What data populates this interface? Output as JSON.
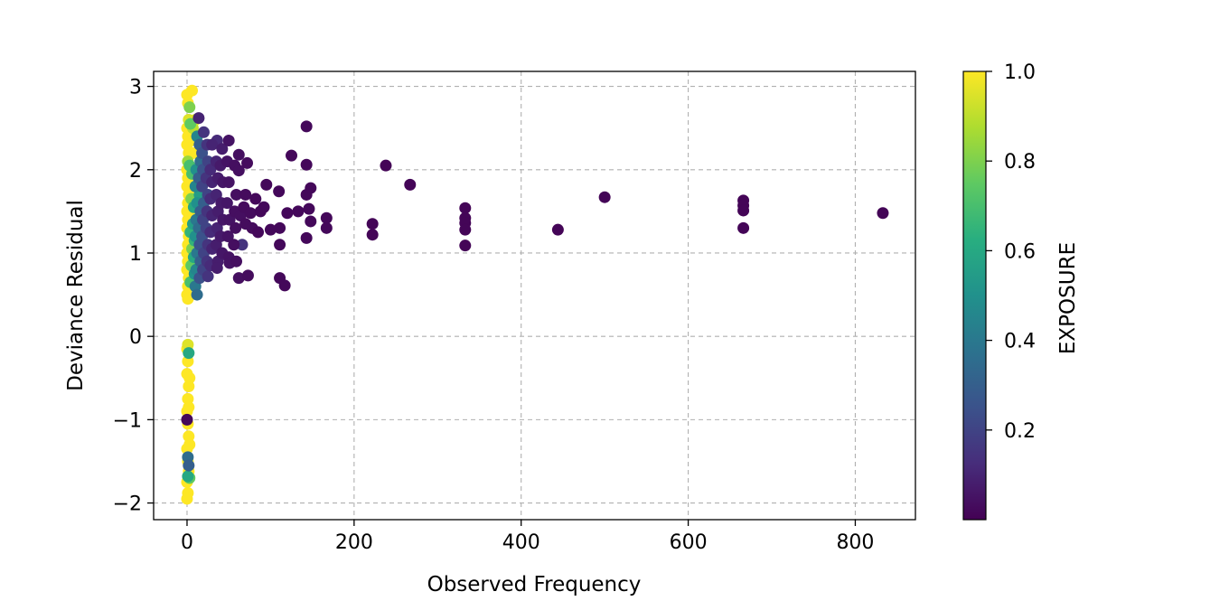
{
  "chart_data": {
    "type": "scatter",
    "xlabel": "Observed Frequency",
    "ylabel": "Deviance Residual",
    "colorbar_label": "EXPOSURE",
    "colormap": "viridis",
    "xlim": [
      -40,
      872
    ],
    "ylim": [
      -2.2,
      3.18
    ],
    "xticks": [
      0,
      200,
      400,
      600,
      800
    ],
    "yticks": [
      -2,
      -1,
      0,
      1,
      2,
      3
    ],
    "ytick_labels": [
      "−2",
      "−1",
      "0",
      "1",
      "2",
      "3"
    ],
    "colorbar_ticks": [
      0.2,
      0.4,
      0.6,
      0.8,
      1.0
    ],
    "colorbar_tick_labels": [
      "0.2",
      "0.4",
      "0.6",
      "0.8",
      "1.0"
    ],
    "colorbar_range": [
      0.0,
      1.0
    ],
    "grid": true,
    "points": [
      {
        "x": 0,
        "y": 2.9,
        "c": 1.0
      },
      {
        "x": 1,
        "y": 2.8,
        "c": 1.0
      },
      {
        "x": 2,
        "y": 2.6,
        "c": 0.95
      },
      {
        "x": 0,
        "y": 2.5,
        "c": 1.0
      },
      {
        "x": 1,
        "y": 2.4,
        "c": 1.0
      },
      {
        "x": 0,
        "y": 2.3,
        "c": 1.0
      },
      {
        "x": 2,
        "y": 2.2,
        "c": 1.0
      },
      {
        "x": 1,
        "y": 2.1,
        "c": 0.85
      },
      {
        "x": 0,
        "y": 2.0,
        "c": 1.0
      },
      {
        "x": 1,
        "y": 1.9,
        "c": 1.0
      },
      {
        "x": 0,
        "y": 1.8,
        "c": 1.0
      },
      {
        "x": 2,
        "y": 1.7,
        "c": 1.0
      },
      {
        "x": 1,
        "y": 1.6,
        "c": 1.0
      },
      {
        "x": 0,
        "y": 1.5,
        "c": 1.0
      },
      {
        "x": 1,
        "y": 1.4,
        "c": 1.0
      },
      {
        "x": 0,
        "y": 1.3,
        "c": 1.0
      },
      {
        "x": 2,
        "y": 1.2,
        "c": 1.0
      },
      {
        "x": 1,
        "y": 1.1,
        "c": 1.0
      },
      {
        "x": 0,
        "y": 1.0,
        "c": 1.0
      },
      {
        "x": 1,
        "y": 0.9,
        "c": 1.0
      },
      {
        "x": 0,
        "y": 0.8,
        "c": 1.0
      },
      {
        "x": 2,
        "y": 0.7,
        "c": 1.0
      },
      {
        "x": 1,
        "y": 0.6,
        "c": 1.0
      },
      {
        "x": 0,
        "y": 0.5,
        "c": 1.0
      },
      {
        "x": 1,
        "y": 0.45,
        "c": 1.0
      },
      {
        "x": 3,
        "y": 2.75,
        "c": 0.8
      },
      {
        "x": 4,
        "y": 2.55,
        "c": 0.75
      },
      {
        "x": 5,
        "y": 2.35,
        "c": 1.0
      },
      {
        "x": 3,
        "y": 2.05,
        "c": 0.7
      },
      {
        "x": 4,
        "y": 1.85,
        "c": 1.0
      },
      {
        "x": 5,
        "y": 1.65,
        "c": 0.8
      },
      {
        "x": 3,
        "y": 1.45,
        "c": 1.0
      },
      {
        "x": 4,
        "y": 1.25,
        "c": 0.65
      },
      {
        "x": 6,
        "y": 1.05,
        "c": 0.8
      },
      {
        "x": 5,
        "y": 0.85,
        "c": 0.75
      },
      {
        "x": 4,
        "y": 0.65,
        "c": 0.7
      },
      {
        "x": 6,
        "y": 2.95,
        "c": 1.0
      },
      {
        "x": 7,
        "y": 2.5,
        "c": 0.9
      },
      {
        "x": 8,
        "y": 2.2,
        "c": 1.0
      },
      {
        "x": 6,
        "y": 1.95,
        "c": 0.7
      },
      {
        "x": 7,
        "y": 1.75,
        "c": 1.0
      },
      {
        "x": 8,
        "y": 1.55,
        "c": 0.6
      },
      {
        "x": 7,
        "y": 1.35,
        "c": 0.55
      },
      {
        "x": 9,
        "y": 1.15,
        "c": 0.65
      },
      {
        "x": 8,
        "y": 0.95,
        "c": 0.6
      },
      {
        "x": 9,
        "y": 0.75,
        "c": 0.5
      },
      {
        "x": 10,
        "y": 2.6,
        "c": 0.95
      },
      {
        "x": 12,
        "y": 2.4,
        "c": 0.45
      },
      {
        "x": 11,
        "y": 2.0,
        "c": 0.5
      },
      {
        "x": 10,
        "y": 1.8,
        "c": 0.45
      },
      {
        "x": 12,
        "y": 1.6,
        "c": 0.5
      },
      {
        "x": 11,
        "y": 1.4,
        "c": 0.4
      },
      {
        "x": 10,
        "y": 1.2,
        "c": 0.5
      },
      {
        "x": 12,
        "y": 1.0,
        "c": 0.4
      },
      {
        "x": 11,
        "y": 0.8,
        "c": 0.45
      },
      {
        "x": 10,
        "y": 0.6,
        "c": 0.4
      },
      {
        "x": 12,
        "y": 0.5,
        "c": 0.35
      },
      {
        "x": 14,
        "y": 2.62,
        "c": 0.1
      },
      {
        "x": 15,
        "y": 2.3,
        "c": 0.3
      },
      {
        "x": 16,
        "y": 2.1,
        "c": 0.35
      },
      {
        "x": 14,
        "y": 1.9,
        "c": 0.3
      },
      {
        "x": 15,
        "y": 1.7,
        "c": 0.55
      },
      {
        "x": 16,
        "y": 1.5,
        "c": 0.3
      },
      {
        "x": 14,
        "y": 1.3,
        "c": 0.35
      },
      {
        "x": 15,
        "y": 1.1,
        "c": 0.25
      },
      {
        "x": 16,
        "y": 0.9,
        "c": 0.3
      },
      {
        "x": 15,
        "y": 0.7,
        "c": 0.25
      },
      {
        "x": 18,
        "y": 2.2,
        "c": 0.25
      },
      {
        "x": 20,
        "y": 2.45,
        "c": 0.15
      },
      {
        "x": 19,
        "y": 2.0,
        "c": 0.25
      },
      {
        "x": 18,
        "y": 1.8,
        "c": 0.2
      },
      {
        "x": 20,
        "y": 1.6,
        "c": 0.3
      },
      {
        "x": 19,
        "y": 1.4,
        "c": 0.2
      },
      {
        "x": 18,
        "y": 1.2,
        "c": 0.25
      },
      {
        "x": 20,
        "y": 1.0,
        "c": 0.2
      },
      {
        "x": 19,
        "y": 0.8,
        "c": 0.2
      },
      {
        "x": 24,
        "y": 2.3,
        "c": 0.15
      },
      {
        "x": 25,
        "y": 2.1,
        "c": 0.2
      },
      {
        "x": 23,
        "y": 1.9,
        "c": 0.15
      },
      {
        "x": 25,
        "y": 1.7,
        "c": 0.2
      },
      {
        "x": 24,
        "y": 1.5,
        "c": 0.15
      },
      {
        "x": 23,
        "y": 1.3,
        "c": 0.2
      },
      {
        "x": 25,
        "y": 1.1,
        "c": 0.15
      },
      {
        "x": 24,
        "y": 0.9,
        "c": 0.15
      },
      {
        "x": 25,
        "y": 0.72,
        "c": 0.15
      },
      {
        "x": 30,
        "y": 2.3,
        "c": 0.1
      },
      {
        "x": 28,
        "y": 2.0,
        "c": 0.12
      },
      {
        "x": 30,
        "y": 1.85,
        "c": 0.1
      },
      {
        "x": 28,
        "y": 1.65,
        "c": 0.12
      },
      {
        "x": 30,
        "y": 1.45,
        "c": 0.1
      },
      {
        "x": 28,
        "y": 1.25,
        "c": 0.12
      },
      {
        "x": 30,
        "y": 1.05,
        "c": 0.1
      },
      {
        "x": 28,
        "y": 0.85,
        "c": 0.12
      },
      {
        "x": 36,
        "y": 2.35,
        "c": 0.12
      },
      {
        "x": 35,
        "y": 2.1,
        "c": 0.1
      },
      {
        "x": 37,
        "y": 1.9,
        "c": 0.08
      },
      {
        "x": 35,
        "y": 1.7,
        "c": 0.1
      },
      {
        "x": 37,
        "y": 1.5,
        "c": 0.08
      },
      {
        "x": 36,
        "y": 1.3,
        "c": 0.1
      },
      {
        "x": 35,
        "y": 1.1,
        "c": 0.08
      },
      {
        "x": 37,
        "y": 0.9,
        "c": 0.08
      },
      {
        "x": 36,
        "y": 0.82,
        "c": 0.08
      },
      {
        "x": 42,
        "y": 2.25,
        "c": 0.08
      },
      {
        "x": 40,
        "y": 2.05,
        "c": 0.07
      },
      {
        "x": 43,
        "y": 1.85,
        "c": 0.06
      },
      {
        "x": 41,
        "y": 1.6,
        "c": 0.07
      },
      {
        "x": 43,
        "y": 1.4,
        "c": 0.06
      },
      {
        "x": 40,
        "y": 1.2,
        "c": 0.07
      },
      {
        "x": 42,
        "y": 1.0,
        "c": 0.06
      },
      {
        "x": 50,
        "y": 2.35,
        "c": 0.05
      },
      {
        "x": 48,
        "y": 2.1,
        "c": 0.05
      },
      {
        "x": 50,
        "y": 1.85,
        "c": 0.05
      },
      {
        "x": 48,
        "y": 1.6,
        "c": 0.06
      },
      {
        "x": 51,
        "y": 1.4,
        "c": 0.05
      },
      {
        "x": 49,
        "y": 1.2,
        "c": 0.05
      },
      {
        "x": 50,
        "y": 0.95,
        "c": 0.05
      },
      {
        "x": 51,
        "y": 0.88,
        "c": 0.05
      },
      {
        "x": 57,
        "y": 2.05,
        "c": 0.04
      },
      {
        "x": 59,
        "y": 1.7,
        "c": 0.04
      },
      {
        "x": 57,
        "y": 1.5,
        "c": 0.04
      },
      {
        "x": 58,
        "y": 1.3,
        "c": 0.04
      },
      {
        "x": 56,
        "y": 1.1,
        "c": 0.04
      },
      {
        "x": 59,
        "y": 0.9,
        "c": 0.04
      },
      {
        "x": 62,
        "y": 2.18,
        "c": 0.04
      },
      {
        "x": 62,
        "y": 1.99,
        "c": 0.04
      },
      {
        "x": 64,
        "y": 1.45,
        "c": 0.04
      },
      {
        "x": 62,
        "y": 0.7,
        "c": 0.04
      },
      {
        "x": 66,
        "y": 1.1,
        "c": 0.15
      },
      {
        "x": 70,
        "y": 1.7,
        "c": 0.03
      },
      {
        "x": 68,
        "y": 1.55,
        "c": 0.03
      },
      {
        "x": 70,
        "y": 1.35,
        "c": 0.03
      },
      {
        "x": 72,
        "y": 2.08,
        "c": 0.03
      },
      {
        "x": 73,
        "y": 0.73,
        "c": 0.03
      },
      {
        "x": 76,
        "y": 1.48,
        "c": 0.03
      },
      {
        "x": 78,
        "y": 1.3,
        "c": 0.03
      },
      {
        "x": 82,
        "y": 1.65,
        "c": 0.02
      },
      {
        "x": 85,
        "y": 1.25,
        "c": 0.02
      },
      {
        "x": 88,
        "y": 1.5,
        "c": 0.02
      },
      {
        "x": 92,
        "y": 1.55,
        "c": 0.02
      },
      {
        "x": 95,
        "y": 1.82,
        "c": 0.02
      },
      {
        "x": 100,
        "y": 1.28,
        "c": 0.02
      },
      {
        "x": 110,
        "y": 1.74,
        "c": 0.02
      },
      {
        "x": 111,
        "y": 1.3,
        "c": 0.02
      },
      {
        "x": 111,
        "y": 1.1,
        "c": 0.02
      },
      {
        "x": 111,
        "y": 0.7,
        "c": 0.02
      },
      {
        "x": 117,
        "y": 0.61,
        "c": 0.02
      },
      {
        "x": 120,
        "y": 1.48,
        "c": 0.02
      },
      {
        "x": 125,
        "y": 2.17,
        "c": 0.02
      },
      {
        "x": 133,
        "y": 1.5,
        "c": 0.02
      },
      {
        "x": 143,
        "y": 2.52,
        "c": 0.02
      },
      {
        "x": 143,
        "y": 2.06,
        "c": 0.02
      },
      {
        "x": 143,
        "y": 1.7,
        "c": 0.02
      },
      {
        "x": 143,
        "y": 1.18,
        "c": 0.02
      },
      {
        "x": 146,
        "y": 1.53,
        "c": 0.02
      },
      {
        "x": 148,
        "y": 1.78,
        "c": 0.02
      },
      {
        "x": 148,
        "y": 1.38,
        "c": 0.02
      },
      {
        "x": 167,
        "y": 1.42,
        "c": 0.02
      },
      {
        "x": 167,
        "y": 1.3,
        "c": 0.02
      },
      {
        "x": 222,
        "y": 1.35,
        "c": 0.01
      },
      {
        "x": 222,
        "y": 1.22,
        "c": 0.01
      },
      {
        "x": 238,
        "y": 2.05,
        "c": 0.01
      },
      {
        "x": 267,
        "y": 1.82,
        "c": 0.01
      },
      {
        "x": 333,
        "y": 1.54,
        "c": 0.01
      },
      {
        "x": 333,
        "y": 1.42,
        "c": 0.01
      },
      {
        "x": 333,
        "y": 1.36,
        "c": 0.01
      },
      {
        "x": 333,
        "y": 1.28,
        "c": 0.01
      },
      {
        "x": 333,
        "y": 1.09,
        "c": 0.01
      },
      {
        "x": 444,
        "y": 1.28,
        "c": 0.01
      },
      {
        "x": 500,
        "y": 1.67,
        "c": 0.01
      },
      {
        "x": 666,
        "y": 1.63,
        "c": 0.01
      },
      {
        "x": 666,
        "y": 1.57,
        "c": 0.01
      },
      {
        "x": 666,
        "y": 1.51,
        "c": 0.01
      },
      {
        "x": 666,
        "y": 1.3,
        "c": 0.01
      },
      {
        "x": 833,
        "y": 1.48,
        "c": 0.01
      },
      {
        "x": 0,
        "y": -0.15,
        "c": 1.0
      },
      {
        "x": 1,
        "y": -0.3,
        "c": 1.0
      },
      {
        "x": 0,
        "y": -0.45,
        "c": 1.0
      },
      {
        "x": 2,
        "y": -0.6,
        "c": 1.0
      },
      {
        "x": 1,
        "y": -0.75,
        "c": 1.0
      },
      {
        "x": 0,
        "y": -0.9,
        "c": 1.0
      },
      {
        "x": 1,
        "y": -1.05,
        "c": 1.0
      },
      {
        "x": 2,
        "y": -1.2,
        "c": 1.0
      },
      {
        "x": 0,
        "y": -1.35,
        "c": 1.0
      },
      {
        "x": 1,
        "y": -1.5,
        "c": 1.0
      },
      {
        "x": 2,
        "y": -1.62,
        "c": 1.0
      },
      {
        "x": 0,
        "y": -1.75,
        "c": 1.0
      },
      {
        "x": 1,
        "y": -1.88,
        "c": 1.0
      },
      {
        "x": 0,
        "y": -1.95,
        "c": 1.0
      },
      {
        "x": 2,
        "y": -0.2,
        "c": 0.6
      },
      {
        "x": 3,
        "y": -0.5,
        "c": 1.0
      },
      {
        "x": 2,
        "y": -0.85,
        "c": 1.0
      },
      {
        "x": 3,
        "y": -1.3,
        "c": 1.0
      },
      {
        "x": 1,
        "y": -1.45,
        "c": 0.35
      },
      {
        "x": 2,
        "y": -1.55,
        "c": 0.3
      },
      {
        "x": 1,
        "y": -1.68,
        "c": 0.6
      },
      {
        "x": 0,
        "y": -1.0,
        "c": 0.02
      },
      {
        "x": 3,
        "y": -1.7,
        "c": 0.75
      },
      {
        "x": 1,
        "y": -0.1,
        "c": 0.95
      }
    ]
  }
}
